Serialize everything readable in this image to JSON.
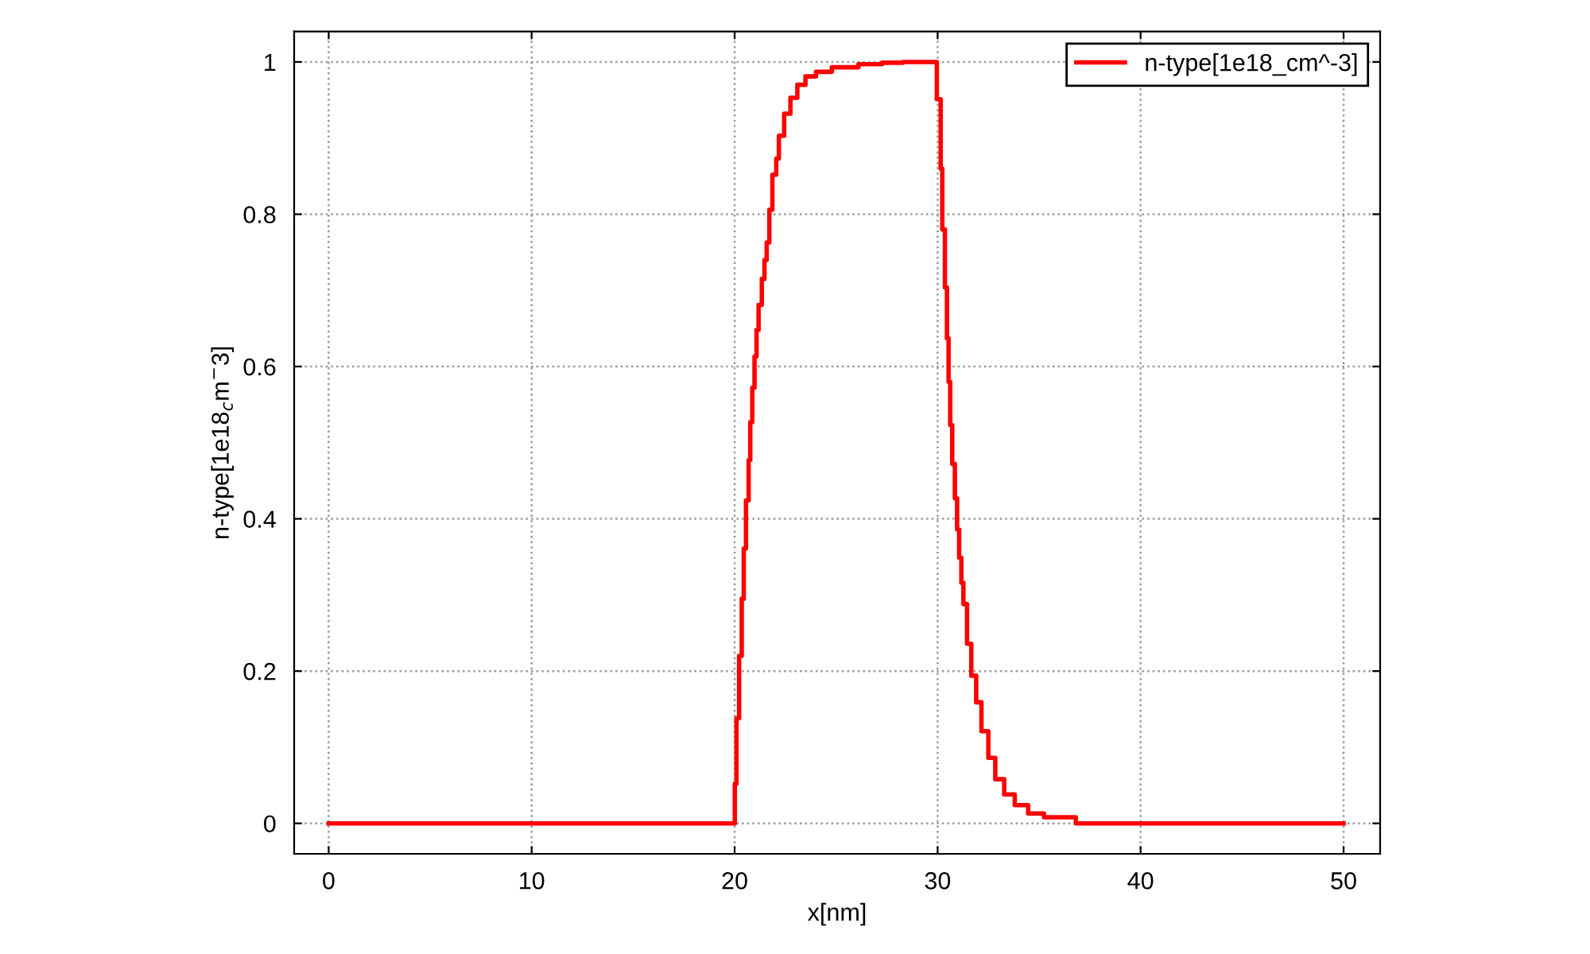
{
  "chart_data": {
    "type": "step",
    "xlabel": "x[nm]",
    "ylabel": "n-type[1e18$_{c}$m$^{−}$3]",
    "x": [
      0,
      20.01,
      20.09,
      20.22,
      20.35,
      20.45,
      20.56,
      20.69,
      20.77,
      20.87,
      20.98,
      21.08,
      21.18,
      21.34,
      21.47,
      21.58,
      21.71,
      21.86,
      22.05,
      22.18,
      22.44,
      22.75,
      23.09,
      23.49,
      24.01,
      24.79,
      26.1,
      27.27,
      28.3,
      29.96,
      30.15,
      30.23,
      30.36,
      30.46,
      30.54,
      30.62,
      30.72,
      30.85,
      30.96,
      31.06,
      31.17,
      31.27,
      31.45,
      31.66,
      31.9,
      32.16,
      32.5,
      32.84,
      33.28,
      33.8,
      34.46,
      35.24,
      36.81,
      50
    ],
    "series": [
      {
        "name": "n-type[1e18_cm^-3]",
        "color": "#ff0000",
        "values": [
          0,
          0.052,
          0.138,
          0.22,
          0.295,
          0.361,
          0.424,
          0.477,
          0.527,
          0.572,
          0.613,
          0.648,
          0.681,
          0.715,
          0.74,
          0.763,
          0.806,
          0.852,
          0.873,
          0.903,
          0.932,
          0.953,
          0.97,
          0.981,
          0.987,
          0.993,
          0.997,
          0.999,
          1.0,
          0.951,
          0.86,
          0.78,
          0.704,
          0.637,
          0.58,
          0.523,
          0.472,
          0.427,
          0.386,
          0.349,
          0.316,
          0.288,
          0.236,
          0.194,
          0.159,
          0.121,
          0.086,
          0.058,
          0.038,
          0.024,
          0.013,
          0.008,
          0,
          0
        ]
      }
    ],
    "xlim": [
      -1.7,
      51.8
    ],
    "ylim": [
      -0.04,
      1.04
    ],
    "xticks": [
      0,
      10,
      20,
      30,
      40,
      50
    ],
    "yticks": [
      0,
      0.2,
      0.4,
      0.6,
      0.8,
      1
    ],
    "grid": true,
    "legend": "top right",
    "line_style": "solid",
    "marker": "none"
  }
}
